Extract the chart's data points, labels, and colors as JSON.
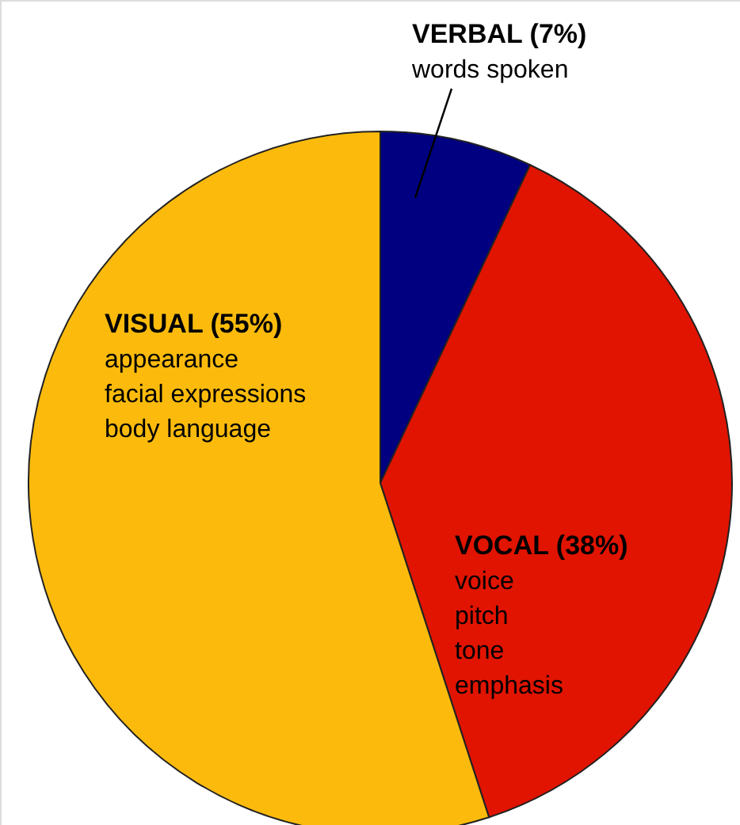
{
  "chart_data": {
    "type": "pie",
    "categories": [
      "VERBAL (7%)",
      "VOCAL (38%)",
      "VISUAL (55%)"
    ],
    "values": [
      7,
      38,
      55
    ],
    "colors": [
      "#000080",
      "#e01400",
      "#fcbb0c"
    ],
    "annotations": [
      "words spoken",
      "voice\npitch\ntone\nemphasis",
      "appearance\nfacial expressions\nbody language"
    ]
  }
}
